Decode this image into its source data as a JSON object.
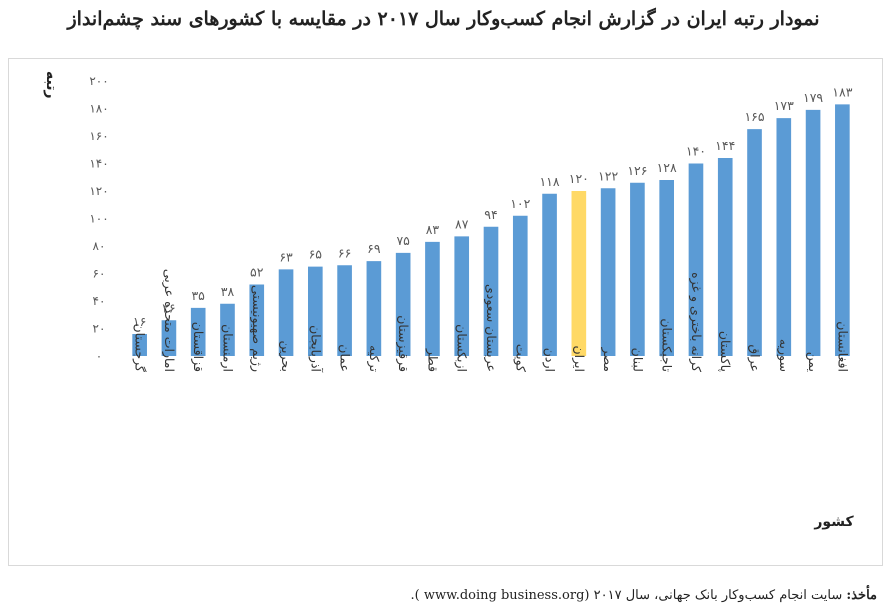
{
  "title": "نمودار رتبه ایران در گزارش انجام کسب‌وکار سال ۲۰۱۷ در مقایسه با کشورهای سند چشم‌انداز",
  "source": {
    "label": "مأخذ:",
    "text": "سایت انجام کسب‌وکار بانک جهانی، سال ۲۰۱۷  (www.doing business.org )."
  },
  "colors": {
    "bar": "#5b9bd5",
    "highlight": "#ffd966",
    "text": "#595959"
  },
  "chart_data": {
    "type": "bar",
    "xlabel": "کشور",
    "ylabel": "رتبه",
    "ylim": [
      0,
      200
    ],
    "yticks": [
      "۰",
      "۲۰",
      "۴۰",
      "۶۰",
      "۸۰",
      "۱۰۰",
      "۱۲۰",
      "۱۴۰",
      "۱۶۰",
      "۱۸۰",
      "۲۰۰"
    ],
    "grid": false,
    "highlight_category": "ایران",
    "categories": [
      "گرجستان",
      "امارات متحده عربی",
      "قزاقستان",
      "ارمنستان",
      "رژیم صهیونیستی",
      "بحرین",
      "آذربایجان",
      "عمان",
      "ترکیه",
      "قرقیزستان",
      "قطر",
      "ازبکستان",
      "عربستان سعودی",
      "کویت",
      "اردن",
      "ایران",
      "مصر",
      "لبنان",
      "تاجیکستان",
      "کرانه باختری و غزه",
      "پاکستان",
      "عراق",
      "سوریه",
      "یمن",
      "افغانستان"
    ],
    "values": [
      16,
      26,
      35,
      38,
      52,
      63,
      65,
      66,
      69,
      75,
      83,
      87,
      94,
      102,
      118,
      120,
      122,
      126,
      128,
      140,
      144,
      165,
      173,
      179,
      183
    ],
    "value_labels": [
      "۱۶",
      "۲۶",
      "۳۵",
      "۳۸",
      "۵۲",
      "۶۳",
      "۶۵",
      "۶۶",
      "۶۹",
      "۷۵",
      "۸۳",
      "۸۷",
      "۹۴",
      "۱۰۲",
      "۱۱۸",
      "۱۲۰",
      "۱۲۲",
      "۱۲۶",
      "۱۲۸",
      "۱۴۰",
      "۱۴۴",
      "۱۶۵",
      "۱۷۳",
      "۱۷۹",
      "۱۸۳"
    ]
  }
}
